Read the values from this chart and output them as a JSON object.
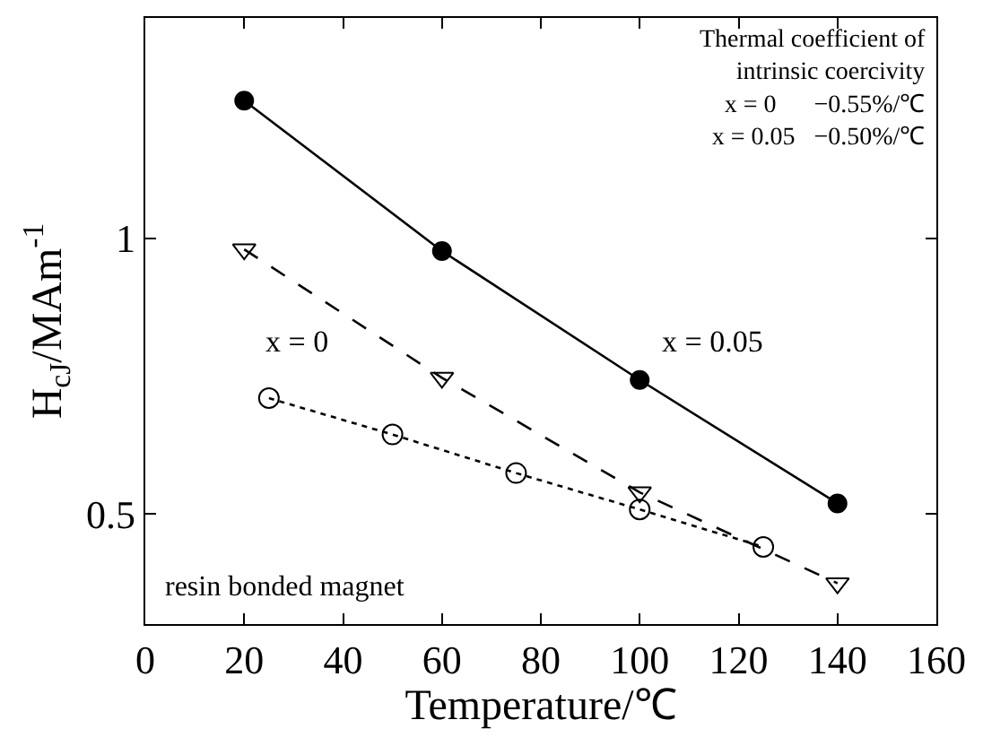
{
  "chart_data": {
    "type": "line",
    "xlabel": "Temperature/℃",
    "ylabel": "H$_{cJ}$/MAm$^{-1}$",
    "xlim": [
      0,
      160
    ],
    "xticks": [
      0,
      20,
      40,
      60,
      80,
      100,
      120,
      140,
      160
    ],
    "ylim": [
      0.3,
      1.4
    ],
    "yticks": [
      {
        "value": 0.5,
        "label": "0.5"
      },
      1
    ],
    "legend": false,
    "series": [
      {
        "name": "x = 0.05",
        "color": "#000000",
        "marker": "circle",
        "line_style": "solid",
        "x": [
          20,
          60,
          100,
          140
        ],
        "values": [
          1.25,
          0.977,
          0.743,
          0.519
        ]
      },
      {
        "name": "x = 0",
        "color": "#000000",
        "marker": "triangle",
        "line_style": "dashed",
        "x": [
          20,
          60,
          100,
          140
        ],
        "values": [
          0.98,
          0.747,
          0.539,
          0.374
        ]
      },
      {
        "color": "#000000",
        "marker": "circle",
        "line_style": "dotted",
        "x": [
          25,
          50,
          75,
          100,
          125
        ],
        "values": [
          0.71,
          0.644,
          0.574,
          0.508,
          0.44
        ]
      }
    ],
    "annotations": [
      "Thermal coefficient of\nintrinsic coercivity\nx = 0      −0.55%/℃\nx = 0.05   −0.50%/℃",
      "resin bonded magnet"
    ]
  }
}
